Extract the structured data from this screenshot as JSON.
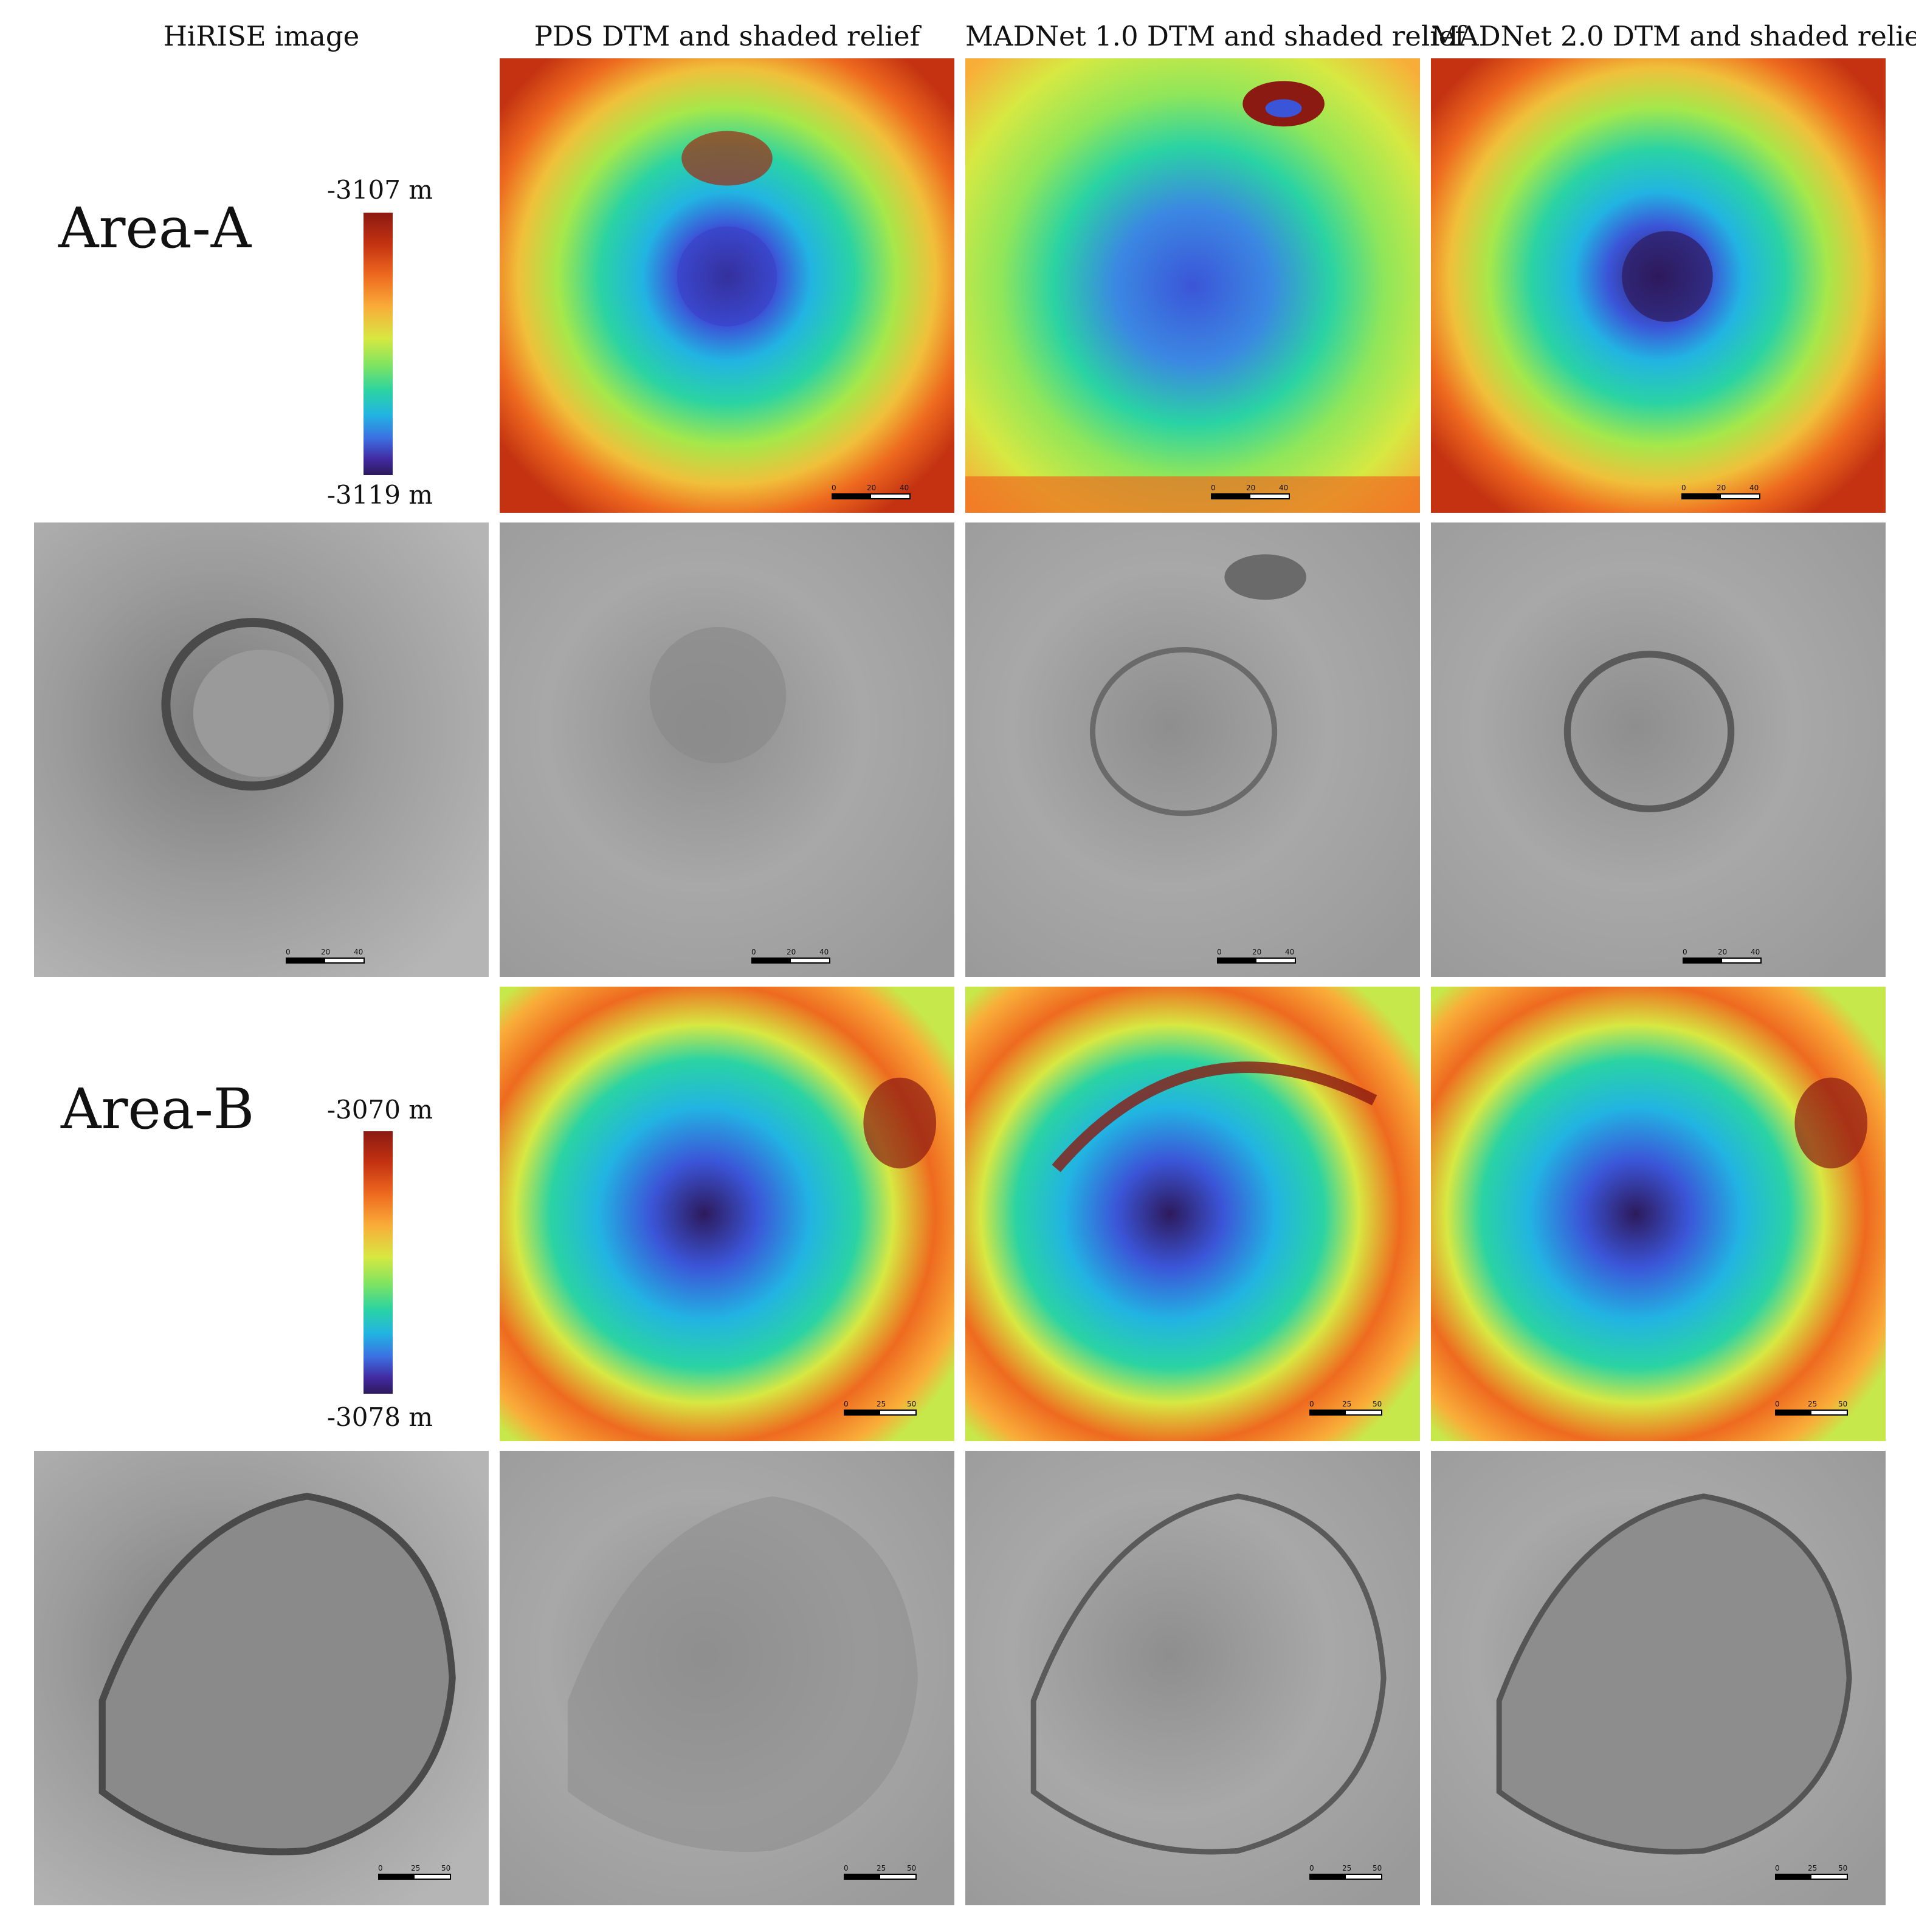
{
  "headers": {
    "hirise": "HiRISE image",
    "pds": "PDS DTM and shaded relief",
    "madnet1": "MADNet 1.0 DTM and shaded relief",
    "madnet2": "MADNet 2.0 DTM and shaded relief"
  },
  "areas": [
    {
      "label": "Area-A",
      "colorbar_top": "-3107 m",
      "colorbar_bottom": "-3119 m",
      "scale": {
        "t0": "0",
        "t1": "20",
        "t2": "40 m"
      }
    },
    {
      "label": "Area-B",
      "colorbar_top": "-3070 m",
      "colorbar_bottom": "-3078 m",
      "scale": {
        "t0": "0",
        "t1": "25",
        "t2": "50 m"
      }
    }
  ],
  "colors": {
    "colormap": [
      "#8b1a12",
      "#c43211",
      "#ee6a1f",
      "#f9ad39",
      "#d7e842",
      "#7fe460",
      "#2ad3a3",
      "#22b4e2",
      "#3b6fe2",
      "#422aa0",
      "#2d1a5c"
    ]
  }
}
